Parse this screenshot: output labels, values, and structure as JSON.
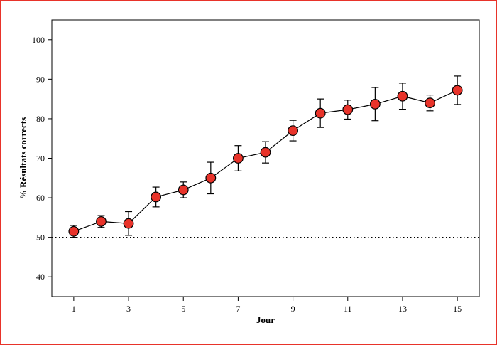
{
  "chart_data": {
    "type": "line",
    "title": "",
    "xlabel": "Jour",
    "ylabel": "% Résultats corrects",
    "xlim": [
      0.2,
      15.8
    ],
    "ylim": [
      35,
      105
    ],
    "x_ticks": [
      1,
      3,
      5,
      7,
      9,
      11,
      13,
      15
    ],
    "y_ticks": [
      40,
      50,
      60,
      70,
      80,
      90,
      100
    ],
    "reference_line": {
      "y": 50,
      "style": "dotted"
    },
    "grid": false,
    "legend": "none",
    "colors": {
      "marker_fill": "#e8332a",
      "marker_stroke": "#000000",
      "line": "#000000",
      "frame": "#e8332a"
    },
    "series": [
      {
        "x": [
          1,
          2,
          3,
          4,
          5,
          6,
          7,
          8,
          9,
          10,
          11,
          12,
          13,
          14,
          15
        ],
        "y": [
          51.5,
          54,
          53.5,
          60.2,
          62,
          65,
          70,
          71.5,
          77,
          81.4,
          82.3,
          83.7,
          85.7,
          84,
          87.2
        ],
        "error": [
          1.5,
          1.5,
          3,
          2.5,
          2,
          4,
          3.2,
          2.7,
          2.6,
          3.6,
          2.4,
          4.2,
          3.3,
          2,
          3.6
        ]
      }
    ]
  }
}
